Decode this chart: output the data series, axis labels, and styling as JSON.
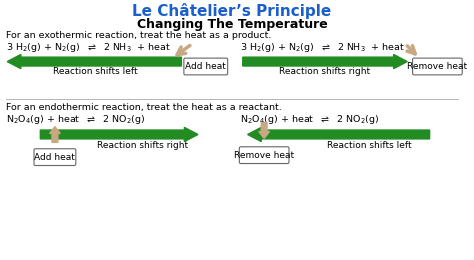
{
  "title": "Le Châtelier’s Principle",
  "subtitle": "Changing The Temperature",
  "title_color": "#1a5fcc",
  "subtitle_color": "#000000",
  "bg_color": "#ffffff",
  "exo_label": "For an exothermic reaction, treat the heat as a product.",
  "endo_label": "For an endothermic reaction, treat the heat as a reactant.",
  "arrow_green": "#228B22",
  "arrow_tan": "#C8A882",
  "box_edge": "#666666"
}
